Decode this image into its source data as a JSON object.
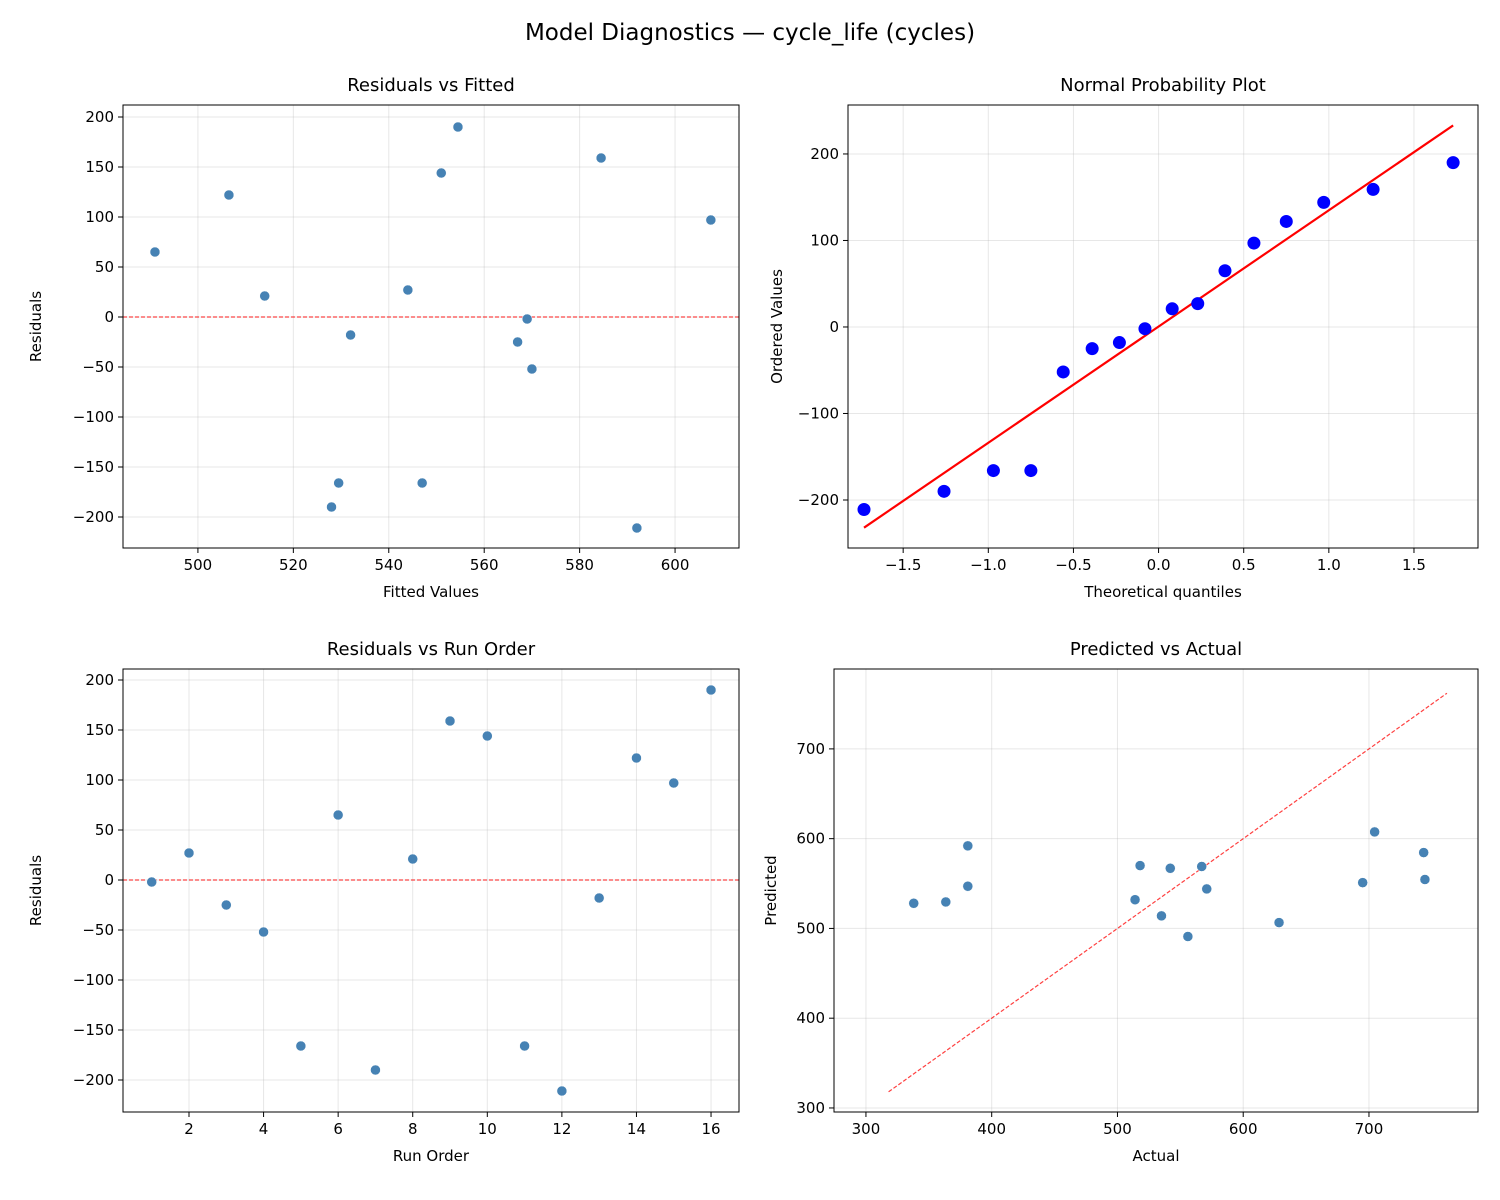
{
  "suptitle": "Model Diagnostics — cycle_life (cycles)",
  "chart_data": [
    {
      "type": "scatter",
      "title": "Residuals vs Fitted",
      "xlabel": "Fitted Values",
      "ylabel": "Residuals",
      "xlim": [
        484.3,
        613.4
      ],
      "ylim": [
        -231,
        212
      ],
      "xticks": [
        500,
        520,
        540,
        560,
        580,
        600
      ],
      "yticks": [
        -200,
        -150,
        -100,
        -50,
        0,
        50,
        100,
        150,
        200
      ],
      "grid": true,
      "point_color": "#4682b4",
      "x": [
        569,
        544,
        567,
        570,
        547,
        491,
        528,
        514,
        584.5,
        551,
        529.5,
        592,
        532,
        506.5,
        607.5,
        554.5
      ],
      "y": [
        -2,
        27,
        -25,
        -52,
        -166,
        65,
        -190,
        21,
        159,
        144,
        -166,
        -211,
        -18,
        122,
        97,
        190
      ],
      "hline": {
        "y": 0,
        "color": "#ff0000",
        "style": "dashed"
      }
    },
    {
      "type": "scatter",
      "title": "Normal Probability Plot",
      "xlabel": "Theoretical quantiles",
      "ylabel": "Ordered Values",
      "xlim": [
        -1.824,
        1.876
      ],
      "ylim": [
        -255.5,
        256.6
      ],
      "xticks": [
        -1.5,
        -1.0,
        -0.5,
        0.0,
        0.5,
        1.0,
        1.5
      ],
      "yticks": [
        -200,
        -100,
        0,
        100,
        200
      ],
      "tick_decimals": 1,
      "grid": true,
      "point_color": "#0000ff",
      "x": [
        -1.73,
        -1.26,
        -0.97,
        -0.75,
        -0.56,
        -0.39,
        -0.23,
        -0.08,
        0.08,
        0.23,
        0.39,
        0.56,
        0.75,
        0.97,
        1.26,
        1.73
      ],
      "y": [
        -211,
        -190,
        -166,
        -166,
        -52,
        -25,
        -18,
        -2,
        21,
        27,
        65,
        97,
        122,
        144,
        159,
        190
      ],
      "fit_line": {
        "x": [
          -1.73,
          1.73
        ],
        "y": [
          -232,
          233
        ],
        "color": "#ff0000",
        "style": "solid"
      }
    },
    {
      "type": "scatter",
      "title": "Residuals vs Run Order",
      "xlabel": "Run Order",
      "ylabel": "Residuals",
      "xlim": [
        0.23,
        16.75
      ],
      "ylim": [
        -232,
        211
      ],
      "xticks": [
        2,
        4,
        6,
        8,
        10,
        12,
        14,
        16
      ],
      "yticks": [
        -200,
        -150,
        -100,
        -50,
        0,
        50,
        100,
        150,
        200
      ],
      "grid": true,
      "point_color": "#4682b4",
      "x": [
        1,
        2,
        3,
        4,
        5,
        6,
        7,
        8,
        9,
        10,
        11,
        12,
        13,
        14,
        15,
        16
      ],
      "y": [
        -2,
        27,
        -25,
        -52,
        -166,
        65,
        -190,
        21,
        159,
        144,
        -166,
        -211,
        -18,
        122,
        97,
        190
      ],
      "hline": {
        "y": 0,
        "color": "#ff0000",
        "style": "dashed"
      }
    },
    {
      "type": "scatter",
      "title": "Predicted vs Actual",
      "xlabel": "Actual",
      "ylabel": "Predicted",
      "xlim": [
        274.6,
        786.7
      ],
      "ylim": [
        295.5,
        789
      ],
      "xticks": [
        300,
        400,
        500,
        600,
        700
      ],
      "yticks": [
        300,
        400,
        500,
        600,
        700
      ],
      "grid": true,
      "point_color": "#4682b4",
      "x": [
        567,
        571,
        542,
        518,
        381,
        556,
        338,
        535,
        743.5,
        695,
        363.5,
        381,
        514,
        628.5,
        704.5,
        744.5
      ],
      "y": [
        569,
        544,
        567,
        570,
        547,
        491,
        528,
        514,
        584.5,
        551,
        529.5,
        592,
        532,
        506.5,
        607.5,
        554.5
      ],
      "fit_line": {
        "x": [
          318,
          762
        ],
        "y": [
          318,
          762
        ],
        "color": "#ff0000",
        "style": "dashed"
      }
    }
  ]
}
